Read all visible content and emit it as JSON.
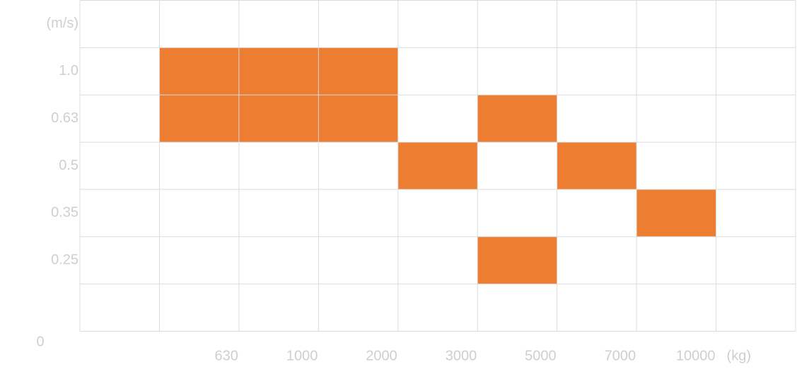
{
  "chart_data": {
    "type": "grid",
    "x_labels": [
      null,
      "630",
      "1000",
      "2000",
      "3000",
      "5000",
      "7000",
      "10000",
      "(kg)"
    ],
    "y_labels": [
      "(m/s)",
      "1.0",
      "0.63",
      "0.5",
      "0.35",
      "0.25",
      null
    ],
    "origin_label": "0",
    "color": "#ed7d31",
    "cells": [
      [
        false,
        false,
        false,
        false,
        false,
        false,
        false,
        false,
        false
      ],
      [
        false,
        true,
        true,
        true,
        false,
        false,
        false,
        false,
        false
      ],
      [
        false,
        true,
        true,
        true,
        false,
        true,
        false,
        false,
        false
      ],
      [
        false,
        false,
        false,
        false,
        true,
        false,
        true,
        false,
        false
      ],
      [
        false,
        false,
        false,
        false,
        false,
        false,
        false,
        true,
        false
      ],
      [
        false,
        false,
        false,
        false,
        false,
        true,
        false,
        false,
        false
      ],
      [
        false,
        false,
        false,
        false,
        false,
        false,
        false,
        false,
        false
      ]
    ]
  }
}
